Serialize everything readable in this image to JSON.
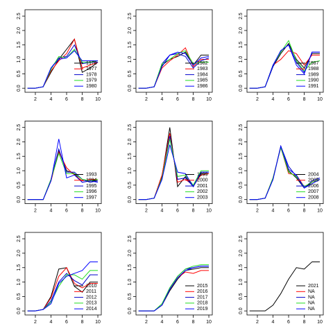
{
  "chart_data": [
    {
      "type": "line",
      "xlim": [
        0.67,
        10.44
      ],
      "ylim": [
        -0.14,
        2.72
      ],
      "xticks": [
        2,
        4,
        6,
        8,
        10
      ],
      "yticks": [
        {
          "value": 0,
          "label": "0.0"
        },
        0.5,
        {
          "value": 1,
          "label": "1.0"
        },
        1.5,
        {
          "value": 2,
          "label": "2.0"
        },
        2.5
      ],
      "legend": "bottom-right",
      "x": [
        1,
        2,
        3,
        4,
        5,
        6,
        7,
        8,
        9,
        10
      ],
      "series": [
        {
          "name": "1976",
          "color": "#000000",
          "values": [
            0,
            0,
            0.05,
            0.55,
            1.0,
            1.35,
            1.7,
            0.55,
            0.7,
            0.9
          ]
        },
        {
          "name": "1977",
          "color": "#ff0000",
          "values": [
            0,
            0,
            0.05,
            0.6,
            0.95,
            1.2,
            1.7,
            0.7,
            0.8,
            0.9
          ]
        },
        {
          "name": "1978",
          "color": "#0000cc",
          "values": [
            0,
            0,
            0.05,
            0.7,
            1.05,
            1.1,
            1.5,
            0.85,
            0.9,
            0.9
          ]
        },
        {
          "name": "1979",
          "color": "#22dd22",
          "values": [
            0,
            0,
            0.05,
            0.65,
            1.1,
            1.05,
            1.35,
            0.9,
            0.9,
            0.95
          ]
        },
        {
          "name": "1980",
          "color": "#0000ff",
          "values": [
            0,
            0,
            0.05,
            0.7,
            1.0,
            1.05,
            1.3,
            0.95,
            0.95,
            0.95
          ]
        }
      ]
    },
    {
      "type": "line",
      "xlim": [
        0.67,
        10.44
      ],
      "ylim": [
        -0.14,
        2.72
      ],
      "xticks": [
        2,
        4,
        6,
        8,
        10
      ],
      "yticks": [
        {
          "value": 0,
          "label": "0.0"
        },
        0.5,
        {
          "value": 1,
          "label": "1.0"
        },
        1.5,
        {
          "value": 2,
          "label": "2.0"
        },
        2.5
      ],
      "legend": "bottom-right",
      "x": [
        1,
        2,
        3,
        4,
        5,
        6,
        7,
        8,
        9,
        10
      ],
      "series": [
        {
          "name": "1982",
          "color": "#000000",
          "values": [
            0,
            0,
            0.05,
            0.8,
            1.0,
            1.1,
            1.25,
            0.8,
            1.15,
            1.15
          ]
        },
        {
          "name": "1983",
          "color": "#ff0000",
          "values": [
            0,
            0,
            0.05,
            0.7,
            0.95,
            1.15,
            1.4,
            0.75,
            1.0,
            1.0
          ]
        },
        {
          "name": "1984",
          "color": "#0000cc",
          "values": [
            0,
            0,
            0.05,
            0.85,
            1.15,
            1.2,
            1.1,
            0.7,
            0.95,
            1.05
          ]
        },
        {
          "name": "1985",
          "color": "#22dd22",
          "values": [
            0,
            0,
            0.05,
            0.85,
            1.0,
            1.2,
            1.3,
            0.85,
            0.9,
            0.9
          ]
        },
        {
          "name": "1986",
          "color": "#0000ff",
          "values": [
            0,
            0,
            0.05,
            0.75,
            1.15,
            1.25,
            1.2,
            0.8,
            1.05,
            1.1
          ]
        }
      ]
    },
    {
      "type": "line",
      "xlim": [
        0.67,
        10.44
      ],
      "ylim": [
        -0.14,
        2.72
      ],
      "xticks": [
        2,
        4,
        6,
        8,
        10
      ],
      "yticks": [
        {
          "value": 0,
          "label": "0.0"
        },
        0.5,
        {
          "value": 1,
          "label": "1.0"
        },
        1.5,
        {
          "value": 2,
          "label": "2.0"
        },
        2.5
      ],
      "legend": "bottom-right",
      "x": [
        1,
        2,
        3,
        4,
        5,
        6,
        7,
        8,
        9,
        10
      ],
      "series": [
        {
          "name": "1987",
          "color": "#000000",
          "values": [
            0,
            0,
            0.05,
            0.75,
            1.2,
            1.55,
            1.0,
            0.7,
            1.2,
            1.2
          ]
        },
        {
          "name": "1988",
          "color": "#ff0000",
          "values": [
            0,
            0,
            0.05,
            0.8,
            1.0,
            1.3,
            1.2,
            0.8,
            1.15,
            1.15
          ]
        },
        {
          "name": "1989",
          "color": "#0000cc",
          "values": [
            0,
            0,
            0.05,
            0.75,
            1.3,
            1.5,
            0.9,
            0.55,
            1.25,
            1.25
          ]
        },
        {
          "name": "1990",
          "color": "#22dd22",
          "values": [
            0,
            0,
            0.05,
            0.8,
            1.25,
            1.65,
            0.95,
            0.6,
            0.9,
            0.95
          ]
        },
        {
          "name": "1991",
          "color": "#0000ff",
          "values": [
            0,
            0,
            0.05,
            0.8,
            1.3,
            1.5,
            0.8,
            0.5,
            1.25,
            1.25
          ]
        }
      ]
    },
    {
      "type": "line",
      "xlim": [
        0.67,
        10.44
      ],
      "ylim": [
        -0.14,
        2.72
      ],
      "xticks": [
        2,
        4,
        6,
        8,
        10
      ],
      "yticks": [
        {
          "value": 0,
          "label": "0.0"
        },
        0.5,
        {
          "value": 1,
          "label": "1.0"
        },
        1.5,
        {
          "value": 2,
          "label": "2.0"
        },
        2.5
      ],
      "legend": "bottom-right",
      "x": [
        1,
        2,
        3,
        4,
        5,
        6,
        7,
        8,
        9,
        10
      ],
      "series": [
        {
          "name": "1993",
          "color": "#000000",
          "values": [
            0,
            0,
            0,
            0.65,
            1.7,
            1.0,
            0.9,
            0.6,
            0.65,
            0.65
          ]
        },
        {
          "name": "1994",
          "color": "#ff0000",
          "values": [
            0,
            0,
            0,
            0.65,
            1.65,
            1.1,
            0.85,
            0.65,
            0.7,
            0.7
          ]
        },
        {
          "name": "1995",
          "color": "#0000cc",
          "values": [
            0,
            0,
            0,
            0.7,
            1.75,
            0.95,
            0.95,
            0.7,
            0.6,
            0.65
          ]
        },
        {
          "name": "1996",
          "color": "#22dd22",
          "values": [
            0,
            0,
            0,
            0.7,
            1.6,
            0.9,
            0.9,
            0.7,
            0.65,
            0.7
          ]
        },
        {
          "name": "1997",
          "color": "#0000ff",
          "values": [
            0,
            0,
            0,
            0.65,
            2.1,
            0.75,
            0.85,
            0.6,
            0.65,
            0.6
          ]
        }
      ]
    },
    {
      "type": "line",
      "xlim": [
        0.67,
        10.44
      ],
      "ylim": [
        -0.14,
        2.72
      ],
      "xticks": [
        2,
        4,
        6,
        8,
        10
      ],
      "yticks": [
        {
          "value": 0,
          "label": "0.0"
        },
        0.5,
        {
          "value": 1,
          "label": "1.0"
        },
        1.5,
        {
          "value": 2,
          "label": "2.0"
        },
        2.5
      ],
      "legend": "bottom-right",
      "x": [
        1,
        2,
        3,
        4,
        5,
        6,
        7,
        8,
        9,
        10
      ],
      "series": [
        {
          "name": "1999",
          "color": "#000000",
          "values": [
            0,
            0,
            0.05,
            0.8,
            2.5,
            0.45,
            0.8,
            0.45,
            0.9,
            0.9
          ]
        },
        {
          "name": "2000",
          "color": "#ff0000",
          "values": [
            0,
            0,
            0.05,
            0.85,
            2.3,
            0.6,
            0.7,
            0.5,
            0.85,
            0.9
          ]
        },
        {
          "name": "2001",
          "color": "#0000cc",
          "values": [
            0,
            0,
            0.05,
            0.7,
            2.2,
            0.7,
            0.75,
            0.45,
            0.95,
            0.95
          ]
        },
        {
          "name": "2002",
          "color": "#22dd22",
          "values": [
            0,
            0,
            0.05,
            0.75,
            2.1,
            0.8,
            0.85,
            0.5,
            1.0,
            1.0
          ]
        },
        {
          "name": "2003",
          "color": "#0000ff",
          "values": [
            0,
            0,
            0.05,
            0.7,
            1.9,
            0.95,
            0.9,
            0.45,
            0.95,
            0.95
          ]
        }
      ]
    },
    {
      "type": "line",
      "xlim": [
        0.67,
        10.44
      ],
      "ylim": [
        -0.14,
        2.72
      ],
      "xticks": [
        2,
        4,
        6,
        8,
        10
      ],
      "yticks": [
        {
          "value": 0,
          "label": "0.0"
        },
        0.5,
        {
          "value": 1,
          "label": "1.0"
        },
        1.5,
        {
          "value": 2,
          "label": "2.0"
        },
        2.5
      ],
      "legend": "bottom-right",
      "x": [
        1,
        2,
        3,
        4,
        5,
        6,
        7,
        8,
        9,
        10
      ],
      "series": [
        {
          "name": "2004",
          "color": "#000000",
          "values": [
            0,
            0,
            0.05,
            0.7,
            1.85,
            1.0,
            0.75,
            0.4,
            0.6,
            0.7
          ]
        },
        {
          "name": "2005",
          "color": "#ff0000",
          "values": [
            0,
            0,
            0.05,
            0.75,
            1.8,
            0.9,
            0.85,
            0.45,
            0.6,
            0.7
          ]
        },
        {
          "name": "2006",
          "color": "#0000cc",
          "values": [
            0,
            0,
            0.05,
            0.7,
            1.85,
            1.15,
            0.8,
            0.4,
            0.65,
            0.75
          ]
        },
        {
          "name": "2007",
          "color": "#22dd22",
          "values": [
            0,
            0,
            0.05,
            0.75,
            1.8,
            0.95,
            0.8,
            0.45,
            0.6,
            0.7
          ]
        },
        {
          "name": "2008",
          "color": "#0000ff",
          "values": [
            0,
            0,
            0.05,
            0.7,
            1.85,
            1.05,
            0.85,
            0.4,
            0.55,
            0.7
          ]
        }
      ]
    },
    {
      "type": "line",
      "xlim": [
        0.67,
        10.44
      ],
      "ylim": [
        -0.14,
        2.72
      ],
      "xticks": [
        2,
        4,
        6,
        8,
        10
      ],
      "yticks": [
        {
          "value": 0,
          "label": "0.0"
        },
        0.5,
        {
          "value": 1,
          "label": "1.0"
        },
        1.5,
        {
          "value": 2,
          "label": "2.0"
        },
        2.5
      ],
      "legend": "bottom-right",
      "x": [
        1,
        2,
        3,
        4,
        5,
        6,
        7,
        8,
        9,
        10
      ],
      "series": [
        {
          "name": "2010",
          "color": "#000000",
          "values": [
            0,
            0,
            0.05,
            0.5,
            1.45,
            1.5,
            0.85,
            0.65,
            1.0,
            1.0
          ]
        },
        {
          "name": "2011",
          "color": "#ff0000",
          "values": [
            0,
            0,
            0.05,
            0.45,
            1.2,
            1.5,
            0.95,
            0.8,
            0.95,
            0.95
          ]
        },
        {
          "name": "2012",
          "color": "#0000cc",
          "values": [
            0,
            0,
            0.05,
            0.35,
            1.0,
            1.3,
            1.05,
            0.9,
            1.25,
            1.25
          ]
        },
        {
          "name": "2013",
          "color": "#22dd22",
          "values": [
            0,
            0,
            0.05,
            0.3,
            0.85,
            1.25,
            1.25,
            1.1,
            1.4,
            1.4
          ]
        },
        {
          "name": "2014",
          "color": "#0000ff",
          "values": [
            0,
            0,
            0.05,
            0.25,
            0.95,
            1.2,
            1.3,
            1.4,
            1.7,
            1.7
          ]
        }
      ]
    },
    {
      "type": "line",
      "xlim": [
        0.67,
        10.44
      ],
      "ylim": [
        -0.14,
        2.72
      ],
      "xticks": [
        2,
        4,
        6,
        8,
        10
      ],
      "yticks": [
        {
          "value": 0,
          "label": "0.0"
        },
        0.5,
        {
          "value": 1,
          "label": "1.0"
        },
        1.5,
        {
          "value": 2,
          "label": "2.0"
        },
        2.5
      ],
      "legend": "bottom-right",
      "x": [
        1,
        2,
        3,
        4,
        5,
        6,
        7,
        8,
        9,
        10
      ],
      "series": [
        {
          "name": "2015",
          "color": "#000000",
          "values": [
            0,
            0,
            0,
            0.2,
            0.7,
            1.1,
            1.4,
            1.45,
            1.5,
            1.5
          ]
        },
        {
          "name": "2016",
          "color": "#ff0000",
          "values": [
            0,
            0,
            0,
            0.2,
            0.75,
            1.15,
            1.35,
            1.3,
            1.4,
            1.4
          ]
        },
        {
          "name": "2017",
          "color": "#0000cc",
          "values": [
            0,
            0,
            0,
            0.2,
            0.8,
            1.2,
            1.45,
            1.5,
            1.55,
            1.55
          ]
        },
        {
          "name": "2018",
          "color": "#22dd22",
          "values": [
            0,
            0,
            0,
            0.25,
            0.8,
            1.2,
            1.45,
            1.55,
            1.6,
            1.6
          ]
        },
        {
          "name": "2019",
          "color": "#0000ff",
          "values": [
            0,
            0,
            0,
            0.2,
            0.75,
            1.15,
            1.4,
            1.5,
            1.55,
            1.55
          ]
        }
      ]
    },
    {
      "type": "line",
      "xlim": [
        0.67,
        10.44
      ],
      "ylim": [
        -0.14,
        2.72
      ],
      "xticks": [
        2,
        4,
        6,
        8,
        10
      ],
      "yticks": [
        {
          "value": 0,
          "label": "0.0"
        },
        0.5,
        {
          "value": 1,
          "label": "1.0"
        },
        1.5,
        {
          "value": 2,
          "label": "2.0"
        },
        2.5
      ],
      "legend": "bottom-right",
      "x": [
        1,
        2,
        3,
        4,
        5,
        6,
        7,
        8,
        9,
        10
      ],
      "series": [
        {
          "name": "2021",
          "color": "#000000",
          "values": [
            0,
            0,
            0,
            0.2,
            0.6,
            1.1,
            1.5,
            1.45,
            1.7,
            1.7
          ]
        },
        {
          "name": "NA",
          "color": "#ff0000",
          "values": [
            null,
            null,
            null,
            null,
            null,
            null,
            null,
            null,
            null,
            null
          ]
        },
        {
          "name": "NA",
          "color": "#0000cc",
          "values": [
            null,
            null,
            null,
            null,
            null,
            null,
            null,
            null,
            null,
            null
          ]
        },
        {
          "name": "NA",
          "color": "#22dd22",
          "values": [
            null,
            null,
            null,
            null,
            null,
            null,
            null,
            null,
            null,
            null
          ]
        },
        {
          "name": "NA",
          "color": "#0000ff",
          "values": [
            null,
            null,
            null,
            null,
            null,
            null,
            null,
            null,
            null,
            null
          ]
        }
      ]
    }
  ]
}
